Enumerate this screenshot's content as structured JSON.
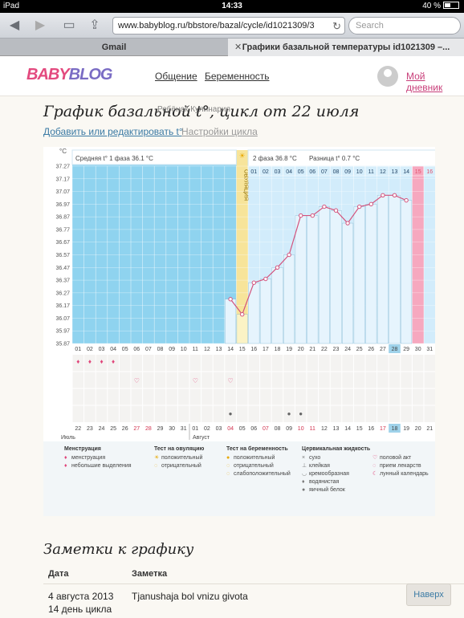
{
  "statusbar": {
    "device": "iPad",
    "time": "14:33",
    "battery": "40 %"
  },
  "browser": {
    "url": "www.babyblog.ru/bbstore/bazal/cycle/id1021309/3",
    "search_placeholder": "Search",
    "tabs": [
      {
        "label": "Gmail"
      },
      {
        "label": "Графики базальной температуры id1021309 –..."
      }
    ]
  },
  "site": {
    "logo_a": "BABY",
    "logo_b": "BLOG",
    "nav": [
      "Общение",
      "Беременность"
    ],
    "diary": "Мой дневник"
  },
  "page": {
    "title": "График базальной t°, цикл от 22 июля",
    "overlay": "Ребёнок   Кулинария",
    "add_link": "Добавить или редактировать t°",
    "settings_link": "Настройки цикла"
  },
  "chart_data": {
    "type": "line",
    "unit_label": "°C",
    "phase1_label": "Средняя t° 1 фаза 36.1 °C",
    "phase2_label": "2 фаза 36.8 °C",
    "diff_label": "Разница t° 0.7 °C",
    "ovulation_label": "ОВУЛЯЦИЯ",
    "y_ticks": [
      "37.27",
      "37.17",
      "37.07",
      "36.97",
      "36.87",
      "36.77",
      "36.67",
      "36.57",
      "36.47",
      "36.37",
      "36.27",
      "36.17",
      "36.07",
      "35.97",
      "35.87"
    ],
    "ylim": [
      35.87,
      37.27
    ],
    "x_labels": [
      "01",
      "02",
      "03",
      "04",
      "05",
      "06",
      "07",
      "08",
      "09",
      "10",
      "11",
      "12",
      "13",
      "14",
      "15",
      "16",
      "17",
      "18",
      "19",
      "20",
      "21",
      "22",
      "23",
      "24",
      "25",
      "26",
      "27",
      "28",
      "29",
      "30",
      "31"
    ],
    "phase2_days": [
      "01",
      "02",
      "03",
      "04",
      "05",
      "06",
      "07",
      "08",
      "09",
      "10",
      "11",
      "12",
      "13",
      "14",
      "15",
      "16"
    ],
    "values": [
      null,
      null,
      null,
      null,
      null,
      null,
      null,
      null,
      null,
      null,
      null,
      null,
      null,
      36.22,
      36.1,
      36.35,
      36.38,
      36.47,
      36.57,
      36.88,
      36.88,
      36.95,
      36.92,
      36.82,
      36.95,
      36.97,
      37.04,
      37.04,
      37.0,
      null,
      null
    ],
    "dates": [
      "22",
      "23",
      "24",
      "25",
      "26",
      "27",
      "28",
      "29",
      "30",
      "31",
      "01",
      "02",
      "03",
      "04",
      "05",
      "06",
      "07",
      "08",
      "09",
      "10",
      "11",
      "12",
      "13",
      "14",
      "15",
      "16",
      "17",
      "18",
      "19",
      "20",
      "21"
    ],
    "red_dates": [
      5,
      6,
      13,
      16,
      19,
      20,
      26
    ],
    "highlight_day": 27,
    "month_labels": [
      "Июль",
      "Август"
    ],
    "legend": {
      "menstruation": {
        "title": "Менструация",
        "items": [
          "менструация",
          "небольшие выделения"
        ]
      },
      "ovulation_test": {
        "title": "Тест на овуляцию",
        "items": [
          "положительный",
          "отрицательный"
        ]
      },
      "pregnancy_test": {
        "title": "Тест на беременность",
        "items": [
          "положительный",
          "отрицательный",
          "слабоположительный"
        ]
      },
      "cervical": {
        "title": "Цервикальная жидкость",
        "items": [
          "сухо",
          "клейкая",
          "кремообразная",
          "водянистая",
          "яичный белок"
        ]
      },
      "other": {
        "items": [
          "половой акт",
          "прием лекарств",
          "лунный календарь"
        ]
      }
    },
    "colors": {
      "phase1": "#8fd3ef",
      "phase2": "#d2ecfb",
      "ovulation": "#f7e49a",
      "menses": "#f6a8bf",
      "line": "#d3527c",
      "highlight": "#9fd2ea"
    }
  },
  "notes": {
    "title": "Заметки к графику",
    "col_date": "Дата",
    "col_note": "Заметка",
    "rows": [
      {
        "date": "4 августа 2013",
        "day": "14 день цикла",
        "note": "Tjanushaja bol vnizu givota"
      }
    ],
    "more_label": "Наверх"
  }
}
